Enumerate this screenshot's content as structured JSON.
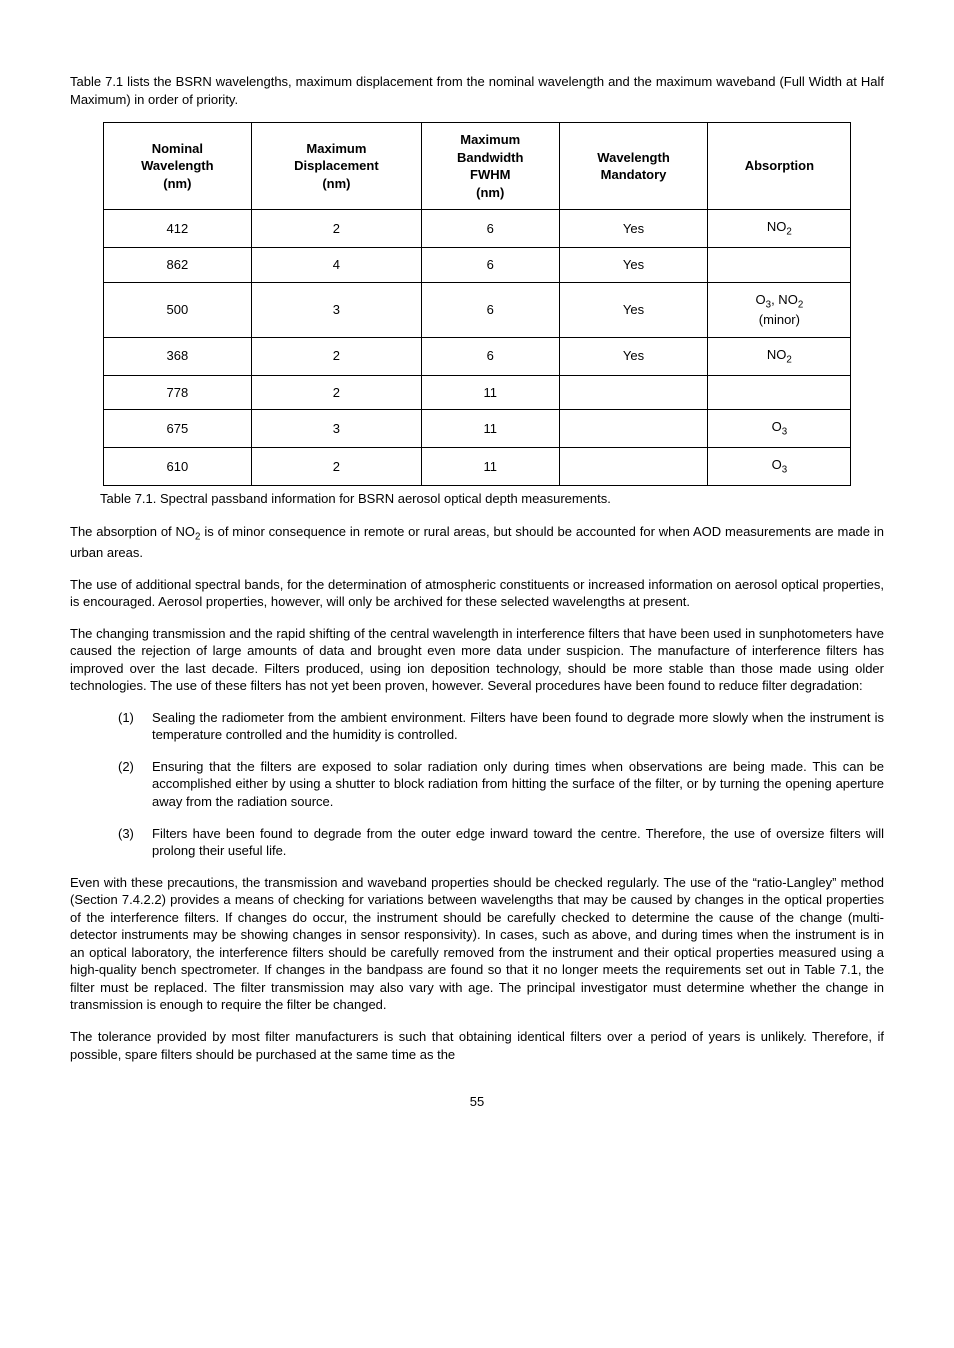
{
  "intro_text": "Table 7.1 lists the BSRN wavelengths, maximum displacement from the nominal wavelength and the maximum waveband (Full Width at Half Maximum) in order of priority.",
  "table": {
    "headers": {
      "col1_l1": "Nominal",
      "col1_l2": "Wavelength",
      "col1_l3": "(nm)",
      "col2_l1": "Maximum",
      "col2_l2": "Displacement",
      "col2_l3": "(nm)",
      "col3_l1": "Maximum",
      "col3_l2": "Bandwidth",
      "col3_l3": "FWHM",
      "col3_l4": "(nm)",
      "col4_l1": "Wavelength",
      "col4_l2": "Mandatory",
      "col5_l1": "Absorption"
    },
    "rows": [
      {
        "nominal": "412",
        "displacement": "2",
        "bandwidth": "6",
        "mandatory": "Yes",
        "absorption_html": "NO<sub>2</sub>"
      },
      {
        "nominal": "862",
        "displacement": "4",
        "bandwidth": "6",
        "mandatory": "Yes",
        "absorption_html": ""
      },
      {
        "nominal": "500",
        "displacement": "3",
        "bandwidth": "6",
        "mandatory": "Yes",
        "absorption_html": "O<sub>3</sub>, NO<sub>2</sub><br>(minor)"
      },
      {
        "nominal": "368",
        "displacement": "2",
        "bandwidth": "6",
        "mandatory": "Yes",
        "absorption_html": "NO<sub>2</sub>"
      },
      {
        "nominal": "778",
        "displacement": "2",
        "bandwidth": "11",
        "mandatory": "",
        "absorption_html": ""
      },
      {
        "nominal": "675",
        "displacement": "3",
        "bandwidth": "11",
        "mandatory": "",
        "absorption_html": "O<sub>3</sub>"
      },
      {
        "nominal": "610",
        "displacement": "2",
        "bandwidth": "11",
        "mandatory": "",
        "absorption_html": "O<sub>3</sub>"
      }
    ],
    "caption": "Table 7.1. Spectral passband information for BSRN aerosol optical depth measurements."
  },
  "para1_html": "The absorption of NO<sub>2</sub> is of minor consequence in remote or rural areas, but should be accounted for when AOD measurements are made in urban areas.",
  "para2": "The use of additional spectral bands, for the determination of atmospheric constituents or increased information on aerosol optical properties, is encouraged. Aerosol properties, however, will only be archived for these selected wavelengths at present.",
  "para3": "The changing transmission and the rapid shifting of the central wavelength in interference filters that have been used in sunphotometers have caused the rejection of large amounts of data and brought even more data under suspicion. The manufacture of interference filters has improved over the last decade. Filters produced, using ion deposition technology, should be more stable than those made using older technologies. The use of these filters has not yet been proven, however. Several procedures have been found to reduce filter degradation:",
  "list": [
    {
      "num": "(1)",
      "text": "Sealing the radiometer from the ambient environment. Filters have been found to degrade more slowly when the instrument is temperature controlled and the humidity is controlled."
    },
    {
      "num": "(2)",
      "text": "Ensuring that the filters are exposed to solar radiation only during times when observations are being made. This can be accomplished either by using a shutter to block radiation from hitting the surface of the filter, or by turning the opening aperture away from the radiation source."
    },
    {
      "num": "(3)",
      "text": "Filters have been found to degrade from the outer edge inward toward the centre. Therefore, the use of oversize filters will prolong their useful life."
    }
  ],
  "para4": "Even with these precautions, the transmission and waveband properties should be checked regularly. The use of the “ratio-Langley” method (Section 7.4.2.2) provides a means of checking for  variations between wavelengths that may be caused by changes in the optical properties of the interference filters. If changes do occur, the instrument should be carefully checked to determine the cause of the change (multi-detector instruments may be showing changes in sensor responsivity). In cases, such as above, and during times when the instrument is in an optical laboratory, the interference filters should be carefully removed from the instrument and their optical properties measured using a high-quality bench spectrometer. If changes in the bandpass are found so that it no longer meets the requirements set out in Table 7.1, the filter must be replaced. The filter transmission may also vary with age. The principal investigator must determine whether the change in transmission is enough to require the filter be changed.",
  "para5": "The tolerance provided by most filter manufacturers is such that obtaining identical filters over a period of years is unlikely. Therefore, if possible, spare filters should be purchased at the same time as the",
  "page_number": "55"
}
